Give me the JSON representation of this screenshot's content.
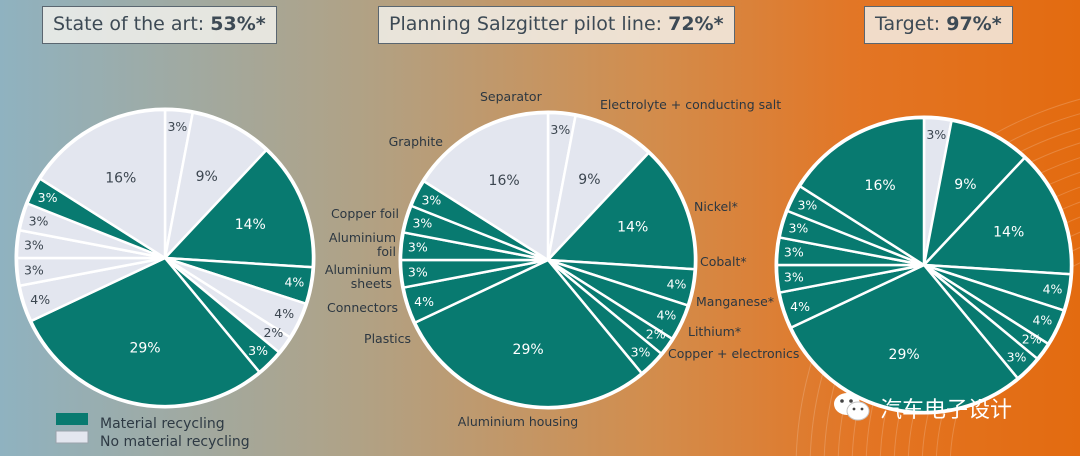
{
  "titles": [
    {
      "text": "State of the art: ",
      "value": "53%*"
    },
    {
      "text": "Planning Salzgitter pilot line: ",
      "value": "72%*"
    },
    {
      "text": "Target: ",
      "value": "97%*"
    }
  ],
  "colors": {
    "recycled": "#087a70",
    "not_recycled": "#e3e6ef",
    "edge": "#ffffff"
  },
  "legend": [
    {
      "label": "Material recycling",
      "key": "recycled"
    },
    {
      "label": "No material recycling",
      "key": "not_recycled"
    }
  ],
  "watermark": "汽车电子设计",
  "chart_data": [
    {
      "type": "pie",
      "title": "State of the art: 53%*",
      "labels": [
        "Separator",
        "Electrolyte + conducting salt",
        "Nickel*",
        "Cobalt*",
        "Manganese*",
        "Lithium*",
        "Copper + electronics",
        "Aluminium housing",
        "Plastics",
        "Connectors",
        "Aluminium sheets",
        "Aluminium foil",
        "Copper foil",
        "Graphite"
      ],
      "values": [
        3,
        9,
        14,
        4,
        4,
        2,
        3,
        29,
        4,
        3,
        3,
        3,
        3,
        16
      ],
      "display": [
        "3%",
        "9%",
        "14%",
        "4%",
        "4%",
        "2%",
        "3%",
        "29%",
        "4%",
        "3%",
        "3%",
        "3%",
        "3%",
        "16%"
      ],
      "recycled": [
        false,
        false,
        true,
        true,
        false,
        false,
        true,
        true,
        false,
        false,
        false,
        false,
        true,
        false
      ]
    },
    {
      "type": "pie",
      "title": "Planning Salzgitter pilot line: 72%*",
      "labels": [
        "Separator",
        "Electrolyte + conducting salt",
        "Nickel*",
        "Cobalt*",
        "Manganese*",
        "Lithium*",
        "Copper + electronics",
        "Aluminium housing",
        "Plastics",
        "Connectors",
        "Aluminium sheets",
        "Aluminium foil",
        "Copper foil",
        "Graphite"
      ],
      "values": [
        3,
        9,
        14,
        4,
        4,
        2,
        3,
        29,
        4,
        3,
        3,
        3,
        3,
        16
      ],
      "display": [
        "3%",
        "9%",
        "14%",
        "4%",
        "4%",
        "2%",
        "3%",
        "29%",
        "4%",
        "3%",
        "3%",
        "3%",
        "3%",
        "16%"
      ],
      "recycled": [
        false,
        false,
        true,
        true,
        true,
        true,
        true,
        true,
        true,
        true,
        true,
        true,
        true,
        false
      ]
    },
    {
      "type": "pie",
      "title": "Target: 97%*",
      "labels": [
        "Separator",
        "Electrolyte + conducting salt",
        "Nickel*",
        "Cobalt*",
        "Manganese*",
        "Lithium*",
        "Copper + electronics",
        "Aluminium housing",
        "Plastics",
        "Connectors",
        "Aluminium sheets",
        "Aluminium foil",
        "Copper foil",
        "Graphite"
      ],
      "values": [
        3,
        9,
        14,
        4,
        4,
        2,
        3,
        29,
        4,
        3,
        3,
        3,
        3,
        16
      ],
      "display": [
        "3%",
        "9%",
        "14%",
        "4%",
        "4%",
        "2%",
        "3%",
        "29%",
        "4%",
        "3%",
        "3%",
        "3%",
        "3%",
        "16%"
      ],
      "recycled": [
        false,
        true,
        true,
        true,
        true,
        true,
        true,
        true,
        true,
        true,
        true,
        true,
        true,
        true
      ]
    }
  ]
}
